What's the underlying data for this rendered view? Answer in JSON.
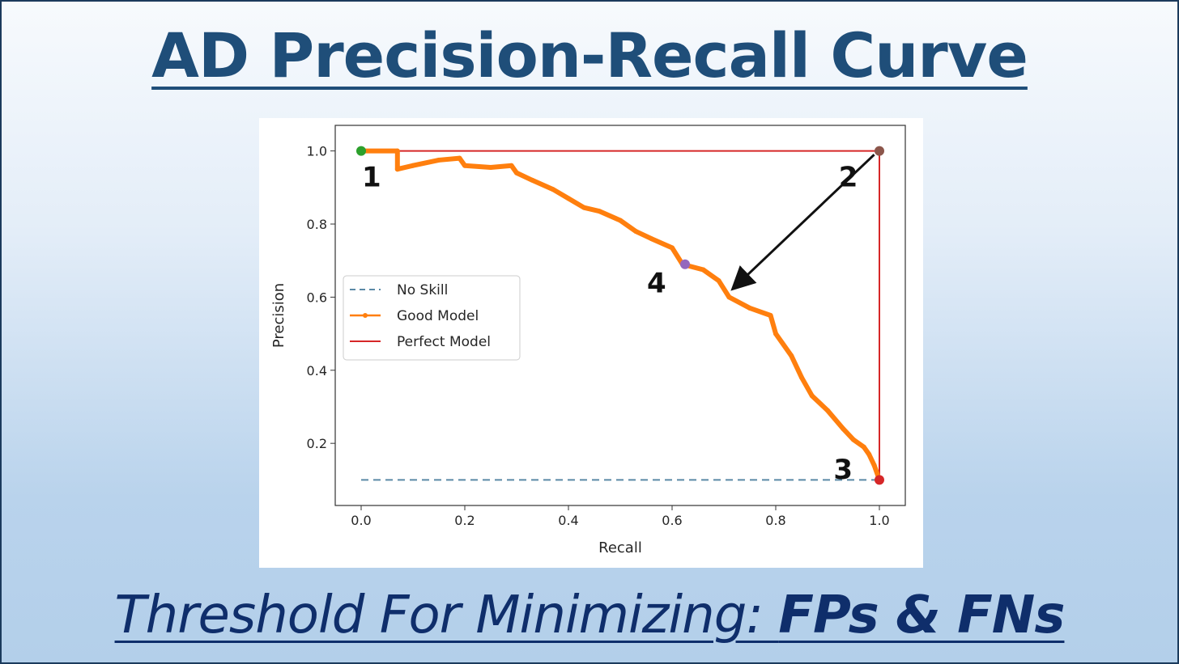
{
  "title": "AD Precision-Recall Curve",
  "subtitle": {
    "prefix": "Threshold For Minimizing: ",
    "bold": "FPs & FNs"
  },
  "chart_data": {
    "type": "line",
    "xlabel": "Recall",
    "ylabel": "Precision",
    "xlim": [
      -0.05,
      1.05
    ],
    "ylim": [
      0.03,
      1.07
    ],
    "xticks": [
      "0.0",
      "0.2",
      "0.4",
      "0.6",
      "0.8",
      "1.0"
    ],
    "yticks": [
      "0.2",
      "0.4",
      "0.6",
      "0.8",
      "1.0"
    ],
    "grid": false,
    "legend_position": "center-left",
    "series": [
      {
        "name": "No Skill",
        "style": "dashed",
        "color": "#5b89a6",
        "x": [
          0.0,
          1.0
        ],
        "y": [
          0.1,
          0.1
        ]
      },
      {
        "name": "Good Model",
        "style": "solid-marker",
        "color": "#ff7f0e",
        "x": [
          0.0,
          0.07,
          0.07,
          0.1,
          0.15,
          0.19,
          0.2,
          0.25,
          0.29,
          0.3,
          0.33,
          0.37,
          0.4,
          0.43,
          0.46,
          0.5,
          0.53,
          0.56,
          0.6,
          0.62,
          0.66,
          0.69,
          0.71,
          0.75,
          0.79,
          0.8,
          0.83,
          0.85,
          0.87,
          0.9,
          0.93,
          0.95,
          0.97,
          0.98,
          0.99,
          1.0
        ],
        "y": [
          1.0,
          1.0,
          0.95,
          0.96,
          0.975,
          0.98,
          0.96,
          0.955,
          0.96,
          0.94,
          0.92,
          0.895,
          0.87,
          0.845,
          0.835,
          0.81,
          0.78,
          0.76,
          0.735,
          0.69,
          0.675,
          0.645,
          0.6,
          0.57,
          0.55,
          0.5,
          0.44,
          0.38,
          0.33,
          0.29,
          0.24,
          0.21,
          0.19,
          0.17,
          0.14,
          0.1
        ]
      },
      {
        "name": "Perfect Model",
        "style": "solid",
        "color": "#d62728",
        "x": [
          0.0,
          1.0,
          1.0
        ],
        "y": [
          1.0,
          1.0,
          0.1
        ]
      }
    ],
    "highlight_points": [
      {
        "x": 0.0,
        "y": 1.0,
        "color": "#2ca02c"
      },
      {
        "x": 1.0,
        "y": 1.0,
        "color": "#8c564b"
      },
      {
        "x": 1.0,
        "y": 0.1,
        "color": "#d62728"
      },
      {
        "x": 0.625,
        "y": 0.69,
        "color": "#9467bd"
      }
    ],
    "annotations": [
      {
        "label": "1",
        "x": 0.02,
        "y": 0.93
      },
      {
        "label": "2",
        "x": 0.94,
        "y": 0.93
      },
      {
        "label": "3",
        "x": 0.93,
        "y": 0.13
      },
      {
        "label": "4",
        "x": 0.57,
        "y": 0.64
      }
    ],
    "arrow": {
      "from": [
        0.99,
        0.99
      ],
      "to": [
        0.73,
        0.64
      ],
      "color": "#111111"
    }
  }
}
